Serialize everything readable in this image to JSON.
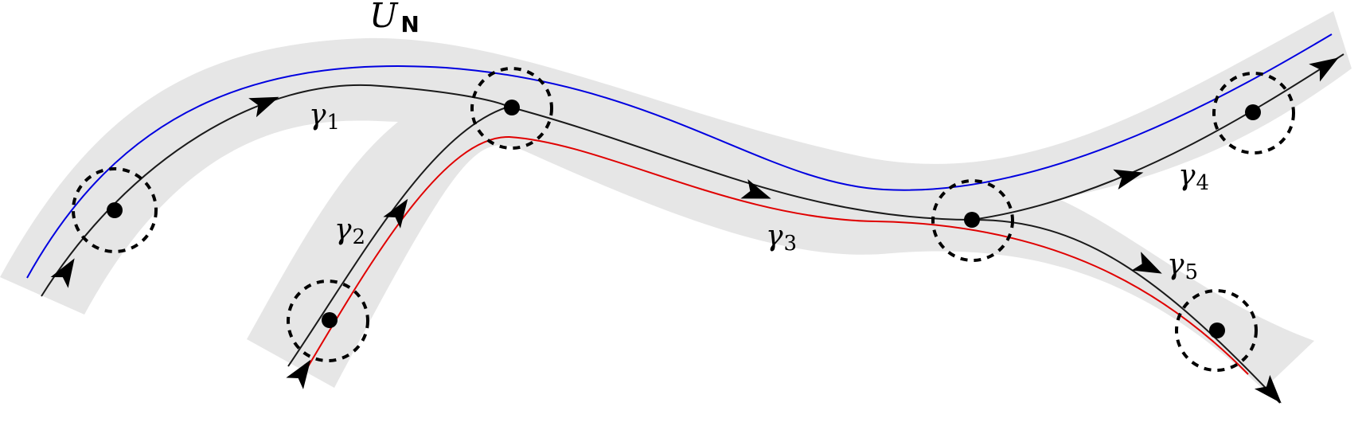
{
  "labels": {
    "neighborhood_symbol": "U",
    "neighborhood_subscript": "N",
    "gamma": "γ",
    "gamma_1_sub": "1",
    "gamma_2_sub": "2",
    "gamma_3_sub": "3",
    "gamma_4_sub": "4",
    "gamma_5_sub": "5"
  },
  "colors": {
    "band": "#e6e6e6",
    "curve": "#1a1a1a",
    "blue_curve": "#0000e0",
    "red_curve": "#e00000",
    "dot": "#000000"
  }
}
